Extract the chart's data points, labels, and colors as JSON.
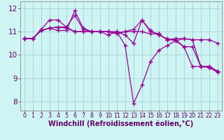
{
  "xlabel": "Windchill (Refroidissement éolien,°C)",
  "x": [
    0,
    1,
    2,
    3,
    4,
    5,
    6,
    7,
    8,
    9,
    10,
    11,
    12,
    13,
    14,
    15,
    16,
    17,
    18,
    19,
    20,
    21,
    22,
    23
  ],
  "series": [
    [
      10.7,
      10.7,
      11.1,
      11.5,
      11.5,
      11.2,
      11.7,
      11.1,
      11.0,
      11.0,
      10.85,
      11.0,
      10.85,
      10.5,
      11.5,
      11.05,
      10.85,
      10.7,
      10.6,
      10.7,
      10.65,
      9.5,
      9.5,
      9.3
    ],
    [
      10.7,
      10.7,
      11.05,
      11.15,
      11.05,
      11.05,
      11.9,
      11.15,
      11.0,
      11.0,
      11.0,
      11.0,
      10.4,
      7.9,
      8.7,
      9.7,
      10.2,
      10.4,
      10.6,
      10.35,
      9.5,
      9.5,
      9.45,
      9.25
    ],
    [
      10.7,
      10.7,
      11.05,
      11.15,
      11.2,
      11.15,
      11.0,
      11.0,
      11.0,
      11.0,
      11.0,
      10.9,
      11.0,
      11.1,
      11.5,
      11.0,
      10.9,
      10.65,
      10.65,
      10.35,
      10.35,
      9.5,
      9.5,
      9.3
    ],
    [
      10.7,
      10.7,
      11.05,
      11.15,
      11.2,
      11.2,
      11.0,
      11.0,
      11.0,
      11.0,
      11.0,
      10.95,
      11.0,
      11.0,
      11.0,
      10.9,
      10.9,
      10.65,
      10.7,
      10.7,
      10.65,
      10.65,
      10.65,
      10.5
    ]
  ],
  "line_color": "#990099",
  "marker": "+",
  "markersize": 4,
  "linewidth": 0.9,
  "markeredgewidth": 1.0,
  "ylim": [
    7.6,
    12.3
  ],
  "yticks": [
    8,
    9,
    10,
    11,
    12
  ],
  "xticks": [
    0,
    1,
    2,
    3,
    4,
    5,
    6,
    7,
    8,
    9,
    10,
    11,
    12,
    13,
    14,
    15,
    16,
    17,
    18,
    19,
    20,
    21,
    22,
    23
  ],
  "bg_color": "#cff4f4",
  "grid_color": "#99cccc",
  "spine_color": "#888888",
  "tick_label_color": "#660066",
  "xlabel_color": "#660066",
  "xlabel_fontsize": 7.0,
  "ytick_fontsize": 7.5,
  "xtick_fontsize": 5.8
}
